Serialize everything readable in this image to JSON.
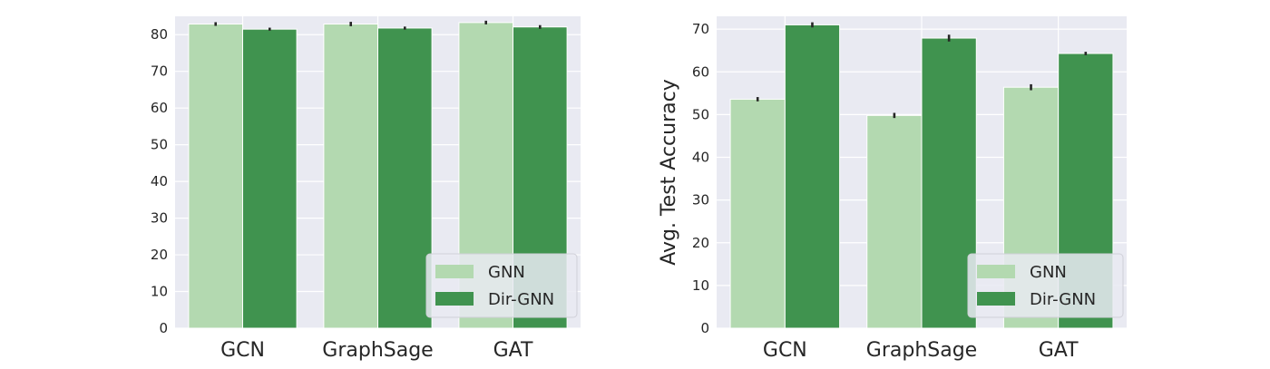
{
  "colors": {
    "background": "#e9eaf2",
    "grid": "#ffffff",
    "GNN": "#b3d9b0",
    "Dir-GNN": "#40934f",
    "error_bar": "#262626",
    "legend_face": "#e9eaf2",
    "legend_edge": "#d0d0d8"
  },
  "chart_data": [
    {
      "type": "bar",
      "categories": [
        "GCN",
        "GraphSage",
        "GAT"
      ],
      "series": [
        {
          "name": "GNN",
          "values": [
            82.9,
            82.9,
            83.3
          ],
          "errors": [
            0.5,
            0.6,
            0.5
          ]
        },
        {
          "name": "Dir-GNN",
          "values": [
            81.5,
            81.8,
            82.1
          ],
          "errors": [
            0.4,
            0.4,
            0.5
          ]
        }
      ],
      "ylabel": "",
      "xlabel": "",
      "ylim": [
        0,
        85
      ],
      "yticks": [
        0,
        10,
        20,
        30,
        40,
        50,
        60,
        70,
        80
      ],
      "grid": true,
      "legend_position": "lower-right"
    },
    {
      "type": "bar",
      "categories": [
        "GCN",
        "GraphSage",
        "GAT"
      ],
      "series": [
        {
          "name": "GNN",
          "values": [
            53.6,
            49.8,
            56.4
          ],
          "errors": [
            0.5,
            0.6,
            0.7
          ]
        },
        {
          "name": "Dir-GNN",
          "values": [
            71.0,
            67.9,
            64.3
          ],
          "errors": [
            0.6,
            0.8,
            0.4
          ]
        }
      ],
      "ylabel": "Avg. Test Accuracy",
      "xlabel": "",
      "ylim": [
        0,
        73
      ],
      "yticks": [
        0,
        10,
        20,
        30,
        40,
        50,
        60,
        70
      ],
      "grid": true,
      "legend_position": "lower-right"
    }
  ]
}
